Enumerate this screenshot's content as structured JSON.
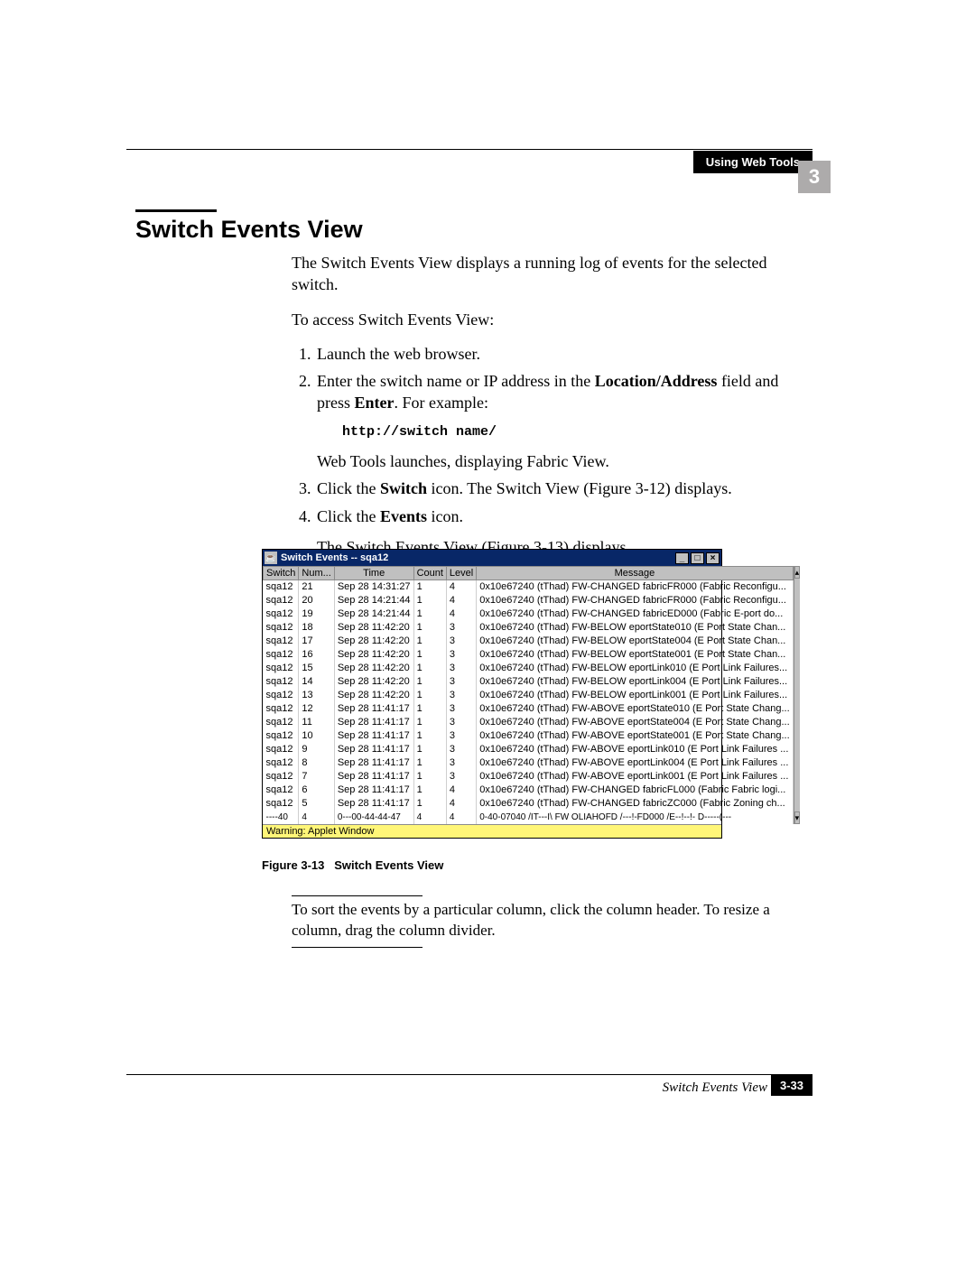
{
  "header": {
    "label": "Using Web Tools",
    "chapter": "3"
  },
  "section": {
    "title": "Switch Events View"
  },
  "body": {
    "intro": "The Switch Events View displays a running log of events for the selected switch.",
    "access_lead": "To access Switch Events View:",
    "step1": "Launch the web browser.",
    "step2_pre": "Enter the switch name or IP address in the ",
    "step2_bold1": "Location/Address",
    "step2_mid": " field and press ",
    "step2_bold2": "Enter",
    "step2_post": ". For example:",
    "codeblock": "http://switch name/",
    "after_code": "Web Tools launches, displaying Fabric View.",
    "step3_pre": "Click the ",
    "step3_bold": "Switch",
    "step3_post": " icon. The Switch View (Figure 3-12) displays.",
    "step4_pre": "Click the ",
    "step4_bold": "Events",
    "step4_post": " icon.",
    "step4_after": "The Switch Events View (Figure 3-13) displays."
  },
  "applet": {
    "title": "Switch Events -- sqa12",
    "columns": [
      "Switch",
      "Num...",
      "Time",
      "Count",
      "Level",
      "Message"
    ],
    "rows": [
      [
        "sqa12",
        "21",
        "Sep 28 14:31:27",
        "1",
        "4",
        "0x10e67240 (tThad) FW-CHANGED fabricFR000 (Fabric Reconfigu..."
      ],
      [
        "sqa12",
        "20",
        "Sep 28 14:21:44",
        "1",
        "4",
        "0x10e67240 (tThad) FW-CHANGED fabricFR000 (Fabric Reconfigu..."
      ],
      [
        "sqa12",
        "19",
        "Sep 28 14:21:44",
        "1",
        "4",
        "0x10e67240 (tThad) FW-CHANGED fabricED000 (Fabric E-port do..."
      ],
      [
        "sqa12",
        "18",
        "Sep 28 11:42:20",
        "1",
        "3",
        "0x10e67240 (tThad) FW-BELOW eportState010 (E Port State Chan..."
      ],
      [
        "sqa12",
        "17",
        "Sep 28 11:42:20",
        "1",
        "3",
        "0x10e67240 (tThad) FW-BELOW eportState004 (E Port State Chan..."
      ],
      [
        "sqa12",
        "16",
        "Sep 28 11:42:20",
        "1",
        "3",
        "0x10e67240 (tThad) FW-BELOW eportState001 (E Port State Chan..."
      ],
      [
        "sqa12",
        "15",
        "Sep 28 11:42:20",
        "1",
        "3",
        "0x10e67240 (tThad) FW-BELOW eportLink010 (E Port Link Failures..."
      ],
      [
        "sqa12",
        "14",
        "Sep 28 11:42:20",
        "1",
        "3",
        "0x10e67240 (tThad) FW-BELOW eportLink004 (E Port Link Failures..."
      ],
      [
        "sqa12",
        "13",
        "Sep 28 11:42:20",
        "1",
        "3",
        "0x10e67240 (tThad) FW-BELOW eportLink001 (E Port Link Failures..."
      ],
      [
        "sqa12",
        "12",
        "Sep 28 11:41:17",
        "1",
        "3",
        "0x10e67240 (tThad) FW-ABOVE eportState010 (E Port State Chang..."
      ],
      [
        "sqa12",
        "11",
        "Sep 28 11:41:17",
        "1",
        "3",
        "0x10e67240 (tThad) FW-ABOVE eportState004 (E Port State Chang..."
      ],
      [
        "sqa12",
        "10",
        "Sep 28 11:41:17",
        "1",
        "3",
        "0x10e67240 (tThad) FW-ABOVE eportState001 (E Port State Chang..."
      ],
      [
        "sqa12",
        "9",
        "Sep 28 11:41:17",
        "1",
        "3",
        "0x10e67240 (tThad) FW-ABOVE eportLink010 (E Port Link Failures ..."
      ],
      [
        "sqa12",
        "8",
        "Sep 28 11:41:17",
        "1",
        "3",
        "0x10e67240 (tThad) FW-ABOVE eportLink004 (E Port Link Failures ..."
      ],
      [
        "sqa12",
        "7",
        "Sep 28 11:41:17",
        "1",
        "3",
        "0x10e67240 (tThad) FW-ABOVE eportLink001 (E Port Link Failures ..."
      ],
      [
        "sqa12",
        "6",
        "Sep 28 11:41:17",
        "1",
        "4",
        "0x10e67240 (tThad) FW-CHANGED fabricFL000 (Fabric Fabric logi..."
      ],
      [
        "sqa12",
        "5",
        "Sep 28 11:41:17",
        "1",
        "4",
        "0x10e67240 (tThad) FW-CHANGED fabricZC000 (Fabric Zoning ch..."
      ]
    ],
    "cutoff_row": [
      "----40",
      "4",
      "0---00-44-44-47",
      "4",
      "4",
      "0-40-07040 /IT---I\\ FW OLIAHOFD /---!-FD000 /E--!--!- D-----(---"
    ],
    "warning": "Warning: Applet Window"
  },
  "figure_caption": {
    "num": "Figure 3-13",
    "title": "Switch Events View"
  },
  "note": {
    "text": "To sort the events by a particular column, click the column header. To resize a column, drag the column divider."
  },
  "footer": {
    "title": "Switch Events View",
    "page": "3-33"
  }
}
